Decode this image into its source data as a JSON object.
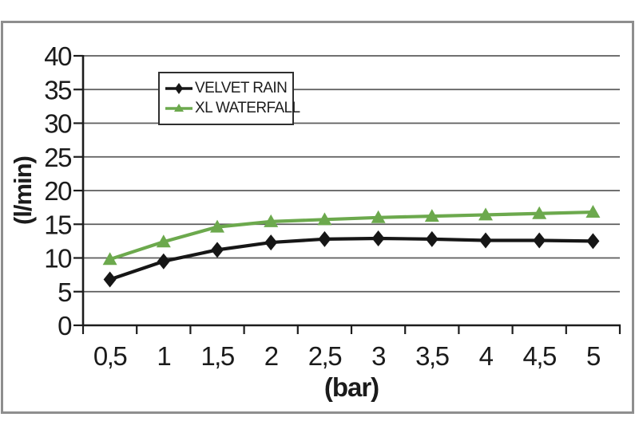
{
  "chart_data": {
    "type": "line",
    "title": "",
    "xlabel": "(bar)",
    "ylabel": "(l/min)",
    "x": [
      0.5,
      1,
      1.5,
      2,
      2.5,
      3,
      3.5,
      4,
      4.5,
      5
    ],
    "x_tick_labels": [
      "0,5",
      "1",
      "1,5",
      "2",
      "2,5",
      "3",
      "3,5",
      "4",
      "4,5",
      "5"
    ],
    "y_ticks": [
      0,
      5,
      10,
      15,
      20,
      25,
      30,
      35,
      40
    ],
    "ylim": [
      0,
      40
    ],
    "grid": true,
    "legend_position": "top-center-inside",
    "series": [
      {
        "name": "VELVET RAIN",
        "color": "#161616",
        "marker": "diamond",
        "values": [
          6.8,
          9.5,
          11.2,
          12.3,
          12.8,
          12.9,
          12.8,
          12.6,
          12.6,
          12.5
        ]
      },
      {
        "name": "XL WATERFALL",
        "color": "#6CA94D",
        "marker": "triangle",
        "values": [
          9.8,
          12.4,
          14.6,
          15.4,
          15.7,
          16.0,
          16.2,
          16.4,
          16.6,
          16.8
        ]
      }
    ]
  },
  "colors": {
    "frame_border": "#8e8e8e",
    "gridline": "#5c5c5c",
    "axis": "#1c1c1c",
    "tick_text": "#1b1b1b",
    "legend_border": "#2f2f2f",
    "background": "#ffffff"
  }
}
